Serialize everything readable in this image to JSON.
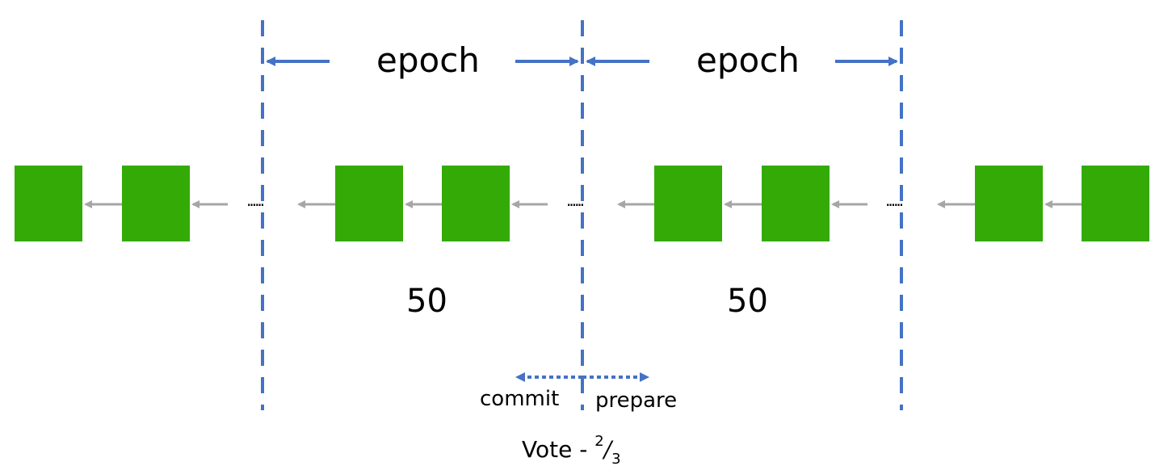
{
  "labels": {
    "epoch_1": "epoch",
    "epoch_2": "epoch",
    "count_1": "50",
    "count_2": "50",
    "commit": "commit",
    "prepare": "prepare",
    "vote_prefix": "Vote - ",
    "vote_num": "2",
    "vote_slash": "/",
    "vote_den": "3",
    "ellipsis_1": "......",
    "ellipsis_2": "......",
    "ellipsis_3": "......"
  },
  "colors": {
    "block": "#33aa05",
    "divider": "#4472c4",
    "link_arrow": "#a6a6a6"
  }
}
